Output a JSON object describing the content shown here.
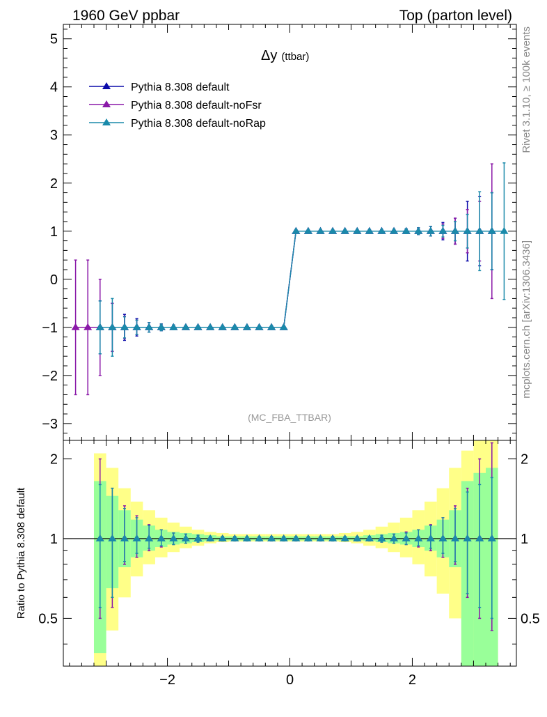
{
  "header": {
    "left": "1960 GeV ppbar",
    "right": "Top (parton level)"
  },
  "side": {
    "rivet": "Rivet 3.1.10, ≥ 100k events",
    "mcplots": "mcplots.cern.ch [arXiv:1306.3436]"
  },
  "main_plot": {
    "title_main": "Δy",
    "title_sub": "(ttbar)",
    "analysis": "(MC_FBA_TTBAR)"
  },
  "ratio_plot": {
    "ylabel": "Ratio to Pythia 8.308 default"
  },
  "colors": {
    "default": "#0a0aaa",
    "noFsr": "#8a19a8",
    "noRap": "#1a8aaa",
    "band_inner": "#99ff99",
    "band_outer": "#ffff88"
  },
  "chart_data": [
    {
      "type": "line",
      "xlim": [
        -3.7,
        3.7
      ],
      "ylim": [
        -3.35,
        5.3
      ],
      "x_ticks": [
        -2,
        0,
        2
      ],
      "y_ticks": [
        -3,
        -2,
        -1,
        0,
        1,
        2,
        3,
        4,
        5
      ],
      "x": [
        -3.5,
        -3.3,
        -3.1,
        -2.9,
        -2.7,
        -2.5,
        -2.3,
        -2.1,
        -1.9,
        -1.7,
        -1.5,
        -1.3,
        -1.1,
        -0.9,
        -0.7,
        -0.5,
        -0.3,
        -0.1,
        0.1,
        0.3,
        0.5,
        0.7,
        0.9,
        1.1,
        1.3,
        1.5,
        1.7,
        1.9,
        2.1,
        2.3,
        2.5,
        2.7,
        2.9,
        3.1,
        3.3,
        3.5
      ],
      "series": [
        {
          "name": "Pythia 8.308 default",
          "values": [
            null,
            null,
            -1,
            -1,
            -1,
            -1,
            -1,
            -1,
            -1,
            -1,
            -1,
            -1,
            -1,
            -1,
            -1,
            -1,
            -1,
            -1,
            1,
            1,
            1,
            1,
            1,
            1,
            1,
            1,
            1,
            1,
            1,
            1,
            1,
            1,
            1,
            1,
            1,
            null
          ],
          "errors": [
            null,
            null,
            0.55,
            0.5,
            0.27,
            0.18,
            0.1,
            0.07,
            0.05,
            0.04,
            0.03,
            0.03,
            0.03,
            0.03,
            0.03,
            0.03,
            0.03,
            0.03,
            0.03,
            0.03,
            0.03,
            0.03,
            0.03,
            0.03,
            0.03,
            0.03,
            0.04,
            0.05,
            0.07,
            0.1,
            0.18,
            0.27,
            0.62,
            0.72,
            0.8,
            null
          ]
        },
        {
          "name": "Pythia 8.308 default-noFsr",
          "values": [
            -1,
            -1,
            -1,
            -1,
            -1,
            -1,
            -1,
            -1,
            -1,
            -1,
            -1,
            -1,
            -1,
            -1,
            -1,
            -1,
            -1,
            -1,
            1,
            1,
            1,
            1,
            1,
            1,
            1,
            1,
            1,
            1,
            1,
            1,
            1,
            1,
            1,
            1,
            1,
            null
          ],
          "errors": [
            1.4,
            1.4,
            1.0,
            0.5,
            0.23,
            0.15,
            0.1,
            0.07,
            0.05,
            0.04,
            0.03,
            0.03,
            0.03,
            0.03,
            0.03,
            0.03,
            0.03,
            0.03,
            0.03,
            0.03,
            0.03,
            0.03,
            0.03,
            0.03,
            0.03,
            0.03,
            0.04,
            0.05,
            0.07,
            0.1,
            0.15,
            0.27,
            0.45,
            0.62,
            1.4,
            null
          ]
        },
        {
          "name": "Pythia 8.308 default-noRap",
          "values": [
            null,
            null,
            -1,
            -1,
            -1,
            -1,
            -1,
            -1,
            -1,
            -1,
            -1,
            -1,
            -1,
            -1,
            -1,
            -1,
            -1,
            -1,
            1,
            1,
            1,
            1,
            1,
            1,
            1,
            1,
            1,
            1,
            1,
            1,
            1,
            1,
            1,
            1,
            1,
            1
          ],
          "errors": [
            null,
            null,
            0.55,
            0.6,
            0.22,
            0.15,
            0.1,
            0.07,
            0.05,
            0.04,
            0.03,
            0.03,
            0.03,
            0.03,
            0.03,
            0.03,
            0.03,
            0.03,
            0.03,
            0.03,
            0.03,
            0.03,
            0.03,
            0.03,
            0.03,
            0.03,
            0.04,
            0.05,
            0.07,
            0.1,
            0.12,
            0.2,
            0.35,
            0.82,
            0.8,
            1.42
          ]
        }
      ]
    },
    {
      "type": "line",
      "ylabel": "Ratio to Pythia 8.308 default",
      "xlim": [
        -3.7,
        3.7
      ],
      "ylim": [
        0.33,
        2.35
      ],
      "log_y": true,
      "x_ticks": [
        -2,
        0,
        2
      ],
      "y_ticks": [
        0.5,
        1,
        2
      ],
      "band_edges": [
        -3.2,
        -3.0,
        -2.8,
        -2.6,
        -2.4,
        -2.2,
        -2.0,
        -1.8,
        -1.6,
        -1.4,
        -1.2,
        -1.0,
        -0.8,
        -0.6,
        -0.4,
        -0.2,
        0.0,
        0.2,
        0.4,
        0.6,
        0.8,
        1.0,
        1.2,
        1.4,
        1.6,
        1.8,
        2.0,
        2.2,
        2.4,
        2.6,
        2.8,
        3.0,
        3.2,
        3.4
      ],
      "band_inner": [
        [
          0.37,
          1.65
        ],
        [
          0.65,
          1.45
        ],
        [
          0.78,
          1.28
        ],
        [
          0.85,
          1.18
        ],
        [
          0.9,
          1.12
        ],
        [
          0.93,
          1.08
        ],
        [
          0.95,
          1.06
        ],
        [
          0.96,
          1.05
        ],
        [
          0.97,
          1.04
        ],
        [
          0.98,
          1.03
        ],
        [
          0.985,
          1.02
        ],
        [
          0.985,
          1.02
        ],
        [
          0.985,
          1.02
        ],
        [
          0.985,
          1.02
        ],
        [
          0.985,
          1.02
        ],
        [
          0.985,
          1.02
        ],
        [
          0.985,
          1.02
        ],
        [
          0.985,
          1.02
        ],
        [
          0.985,
          1.02
        ],
        [
          0.985,
          1.02
        ],
        [
          0.985,
          1.02
        ],
        [
          0.985,
          1.02
        ],
        [
          0.98,
          1.03
        ],
        [
          0.97,
          1.04
        ],
        [
          0.96,
          1.05
        ],
        [
          0.95,
          1.06
        ],
        [
          0.93,
          1.08
        ],
        [
          0.9,
          1.12
        ],
        [
          0.85,
          1.18
        ],
        [
          0.78,
          1.28
        ],
        [
          0.33,
          1.65
        ],
        [
          0.33,
          1.77
        ],
        [
          0.33,
          1.85
        ]
      ],
      "band_outer": [
        [
          0.3,
          2.1
        ],
        [
          0.45,
          1.85
        ],
        [
          0.6,
          1.55
        ],
        [
          0.72,
          1.38
        ],
        [
          0.8,
          1.28
        ],
        [
          0.85,
          1.2
        ],
        [
          0.89,
          1.15
        ],
        [
          0.92,
          1.11
        ],
        [
          0.94,
          1.08
        ],
        [
          0.96,
          1.06
        ],
        [
          0.97,
          1.05
        ],
        [
          0.975,
          1.04
        ],
        [
          0.975,
          1.04
        ],
        [
          0.975,
          1.04
        ],
        [
          0.975,
          1.04
        ],
        [
          0.975,
          1.04
        ],
        [
          0.975,
          1.04
        ],
        [
          0.975,
          1.04
        ],
        [
          0.975,
          1.04
        ],
        [
          0.975,
          1.04
        ],
        [
          0.97,
          1.05
        ],
        [
          0.96,
          1.06
        ],
        [
          0.94,
          1.08
        ],
        [
          0.92,
          1.11
        ],
        [
          0.89,
          1.15
        ],
        [
          0.85,
          1.2
        ],
        [
          0.8,
          1.28
        ],
        [
          0.72,
          1.38
        ],
        [
          0.62,
          1.55
        ],
        [
          0.5,
          1.85
        ],
        [
          0.3,
          2.15
        ],
        [
          0.3,
          2.4
        ],
        [
          0.3,
          2.4
        ]
      ],
      "x": [
        -3.1,
        -2.9,
        -2.7,
        -2.5,
        -2.3,
        -2.1,
        -1.9,
        -1.7,
        -1.5,
        -1.3,
        -1.1,
        -0.9,
        -0.7,
        -0.5,
        -0.3,
        -0.1,
        0.1,
        0.3,
        0.5,
        0.7,
        0.9,
        1.1,
        1.3,
        1.5,
        1.7,
        1.9,
        2.1,
        2.3,
        2.5,
        2.7,
        2.9,
        3.1,
        3.3
      ],
      "series": [
        {
          "name": "Pythia 8.308 default-noFsr",
          "values": [
            1,
            1,
            1,
            1,
            1,
            1,
            1,
            1,
            1,
            1,
            1,
            1,
            1,
            1,
            1,
            1,
            1,
            1,
            1,
            1,
            1,
            1,
            1,
            1,
            1,
            1,
            1,
            1,
            1,
            1,
            1,
            1,
            1
          ],
          "errors_lo": [
            0.5,
            0.45,
            0.2,
            0.15,
            0.1,
            0.07,
            0.05,
            0.04,
            0.03,
            0.02,
            0.02,
            0.02,
            0.02,
            0.02,
            0.02,
            0.02,
            0.02,
            0.02,
            0.02,
            0.02,
            0.02,
            0.02,
            0.02,
            0.03,
            0.04,
            0.05,
            0.07,
            0.1,
            0.15,
            0.2,
            0.4,
            0.5,
            0.55
          ],
          "errors_hi": [
            1.0,
            0.55,
            0.33,
            0.22,
            0.13,
            0.08,
            0.05,
            0.04,
            0.03,
            0.02,
            0.02,
            0.02,
            0.02,
            0.02,
            0.02,
            0.02,
            0.02,
            0.02,
            0.02,
            0.02,
            0.02,
            0.02,
            0.02,
            0.03,
            0.04,
            0.06,
            0.08,
            0.13,
            0.2,
            0.33,
            0.55,
            1.0,
            1.3
          ]
        },
        {
          "name": "Pythia 8.308 default-noRap",
          "values": [
            1,
            1,
            1,
            1,
            1,
            1,
            1,
            1,
            1,
            1,
            1,
            1,
            1,
            1,
            1,
            1,
            1,
            1,
            1,
            1,
            1,
            1,
            1,
            1,
            1,
            1,
            1,
            1,
            1,
            1,
            1,
            1,
            1
          ],
          "errors_lo": [
            0.45,
            0.4,
            0.18,
            0.12,
            0.08,
            0.06,
            0.05,
            0.04,
            0.03,
            0.02,
            0.02,
            0.02,
            0.02,
            0.02,
            0.02,
            0.02,
            0.02,
            0.02,
            0.02,
            0.02,
            0.02,
            0.02,
            0.02,
            0.03,
            0.04,
            0.05,
            0.06,
            0.08,
            0.12,
            0.18,
            0.38,
            0.45,
            0.5
          ],
          "errors_hi": [
            0.6,
            0.55,
            0.3,
            0.2,
            0.12,
            0.08,
            0.05,
            0.04,
            0.03,
            0.02,
            0.02,
            0.02,
            0.02,
            0.02,
            0.02,
            0.02,
            0.02,
            0.02,
            0.02,
            0.02,
            0.02,
            0.02,
            0.02,
            0.03,
            0.04,
            0.05,
            0.08,
            0.12,
            0.2,
            0.3,
            0.5,
            0.6,
            0.7
          ]
        }
      ]
    }
  ]
}
